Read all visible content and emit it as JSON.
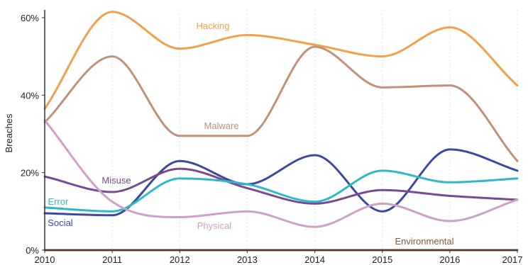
{
  "chart_data": {
    "type": "line",
    "title": "",
    "xlabel": "",
    "ylabel": "Breaches",
    "x": [
      2010,
      2011,
      2012,
      2013,
      2014,
      2015,
      2016,
      2017
    ],
    "x_tick_labels": [
      "2010",
      "2011",
      "2012",
      "2013",
      "2014",
      "2015",
      "2016",
      "2017"
    ],
    "y_ticks": [
      0,
      20,
      40,
      60
    ],
    "y_tick_labels": [
      "0%",
      "20%",
      "40%",
      "60%"
    ],
    "ylim": [
      0,
      62
    ],
    "grid": "vertical dotted",
    "legend": "inline labels",
    "series": [
      {
        "name": "Hacking",
        "color": "#f0a14a",
        "values": [
          36.5,
          61.5,
          52,
          55.5,
          53,
          50,
          57.5,
          42.5
        ]
      },
      {
        "name": "Malware",
        "color": "#c1917a",
        "values": [
          33,
          50,
          29.5,
          29.5,
          52.5,
          42,
          42.5,
          23
        ]
      },
      {
        "name": "Social",
        "color": "#3b4aa0",
        "values": [
          9.5,
          9,
          23,
          17,
          24.5,
          10,
          26,
          20.5
        ]
      },
      {
        "name": "Misuse",
        "color": "#7a4a90",
        "values": [
          19,
          15,
          21,
          16,
          12,
          15.5,
          14,
          13
        ]
      },
      {
        "name": "Error",
        "color": "#2fb8c8",
        "values": [
          11,
          10,
          18.5,
          17,
          12.5,
          20.5,
          17.5,
          18.5
        ]
      },
      {
        "name": "Physical",
        "color": "#cfa0c8",
        "values": [
          33.5,
          12.5,
          8.5,
          10,
          6,
          12,
          7.5,
          13
        ]
      },
      {
        "name": "Environmental",
        "color": "#8a5a38",
        "values": [
          0,
          0,
          0,
          0,
          0,
          0,
          0,
          0
        ]
      }
    ]
  }
}
